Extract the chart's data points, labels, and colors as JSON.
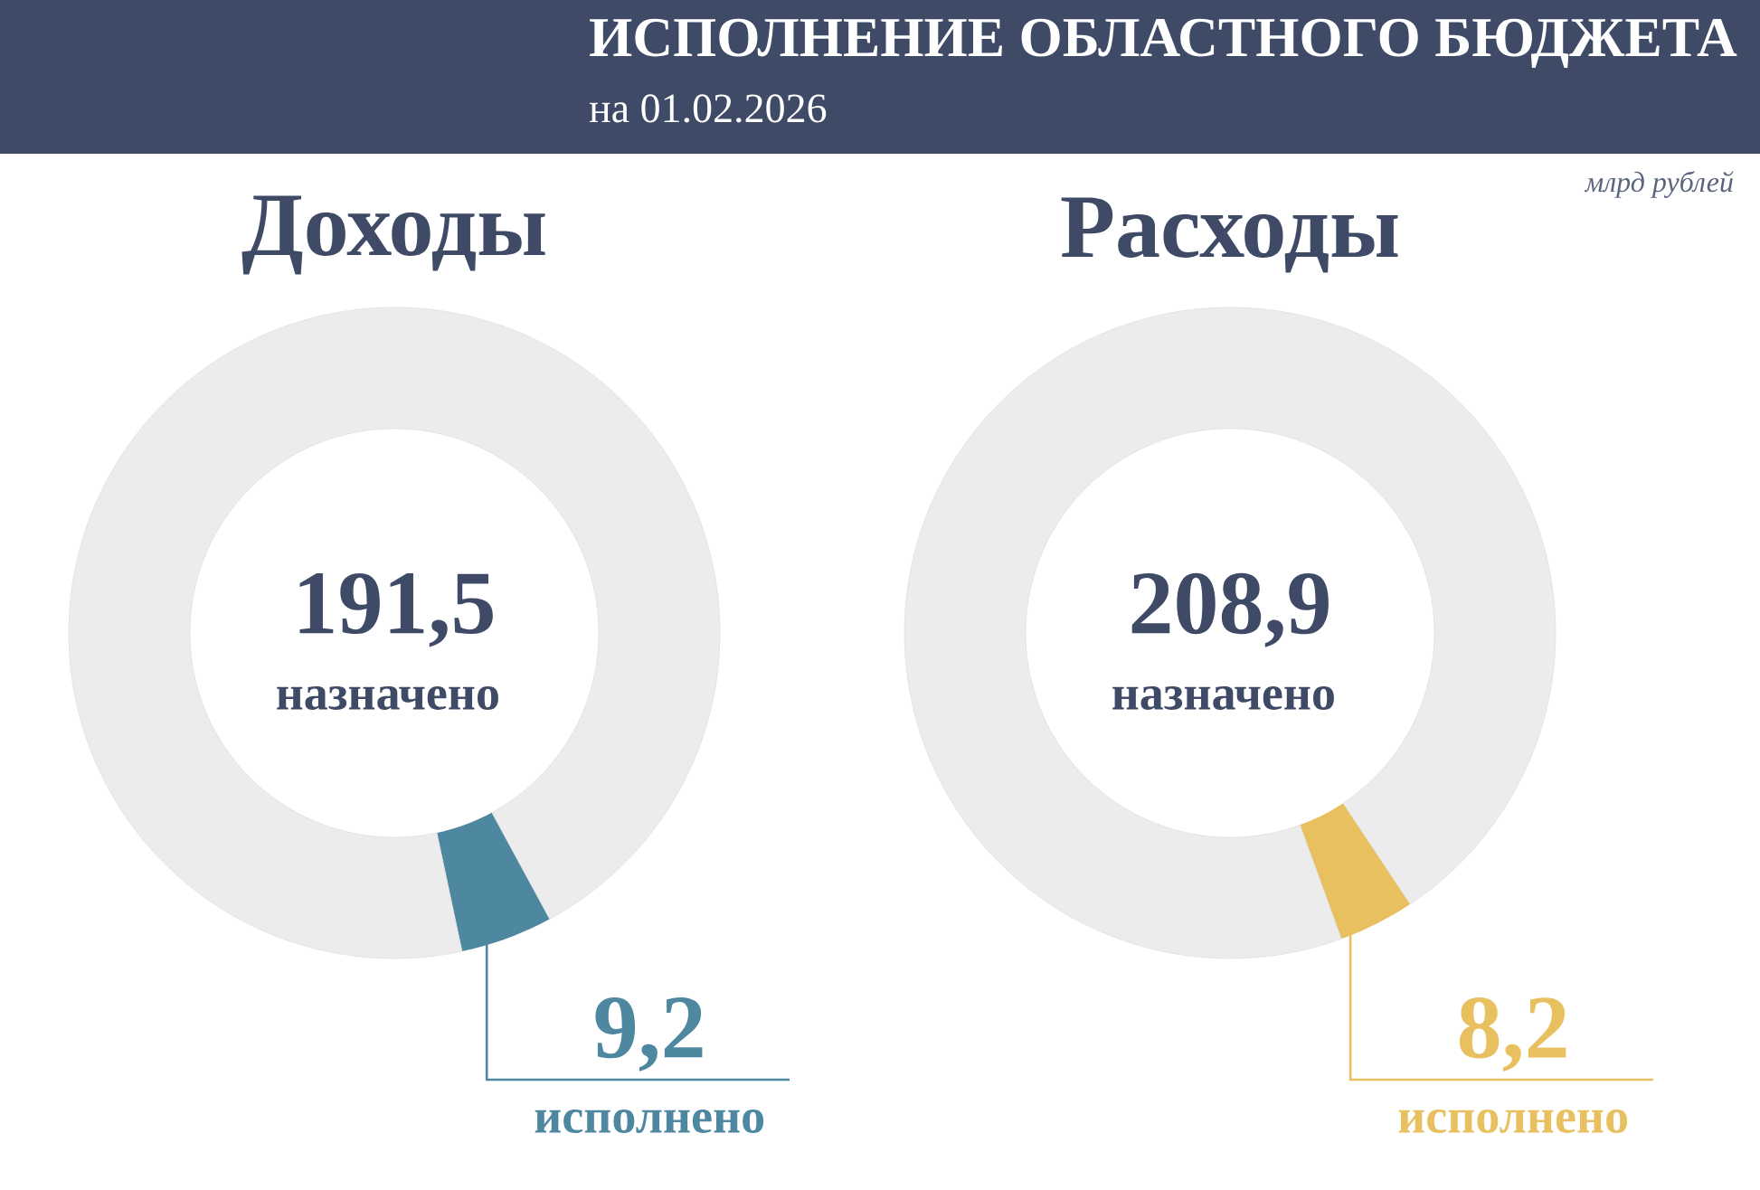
{
  "chart_data": [
    {
      "type": "other",
      "title": "ИСПОЛНЕНИЕ ОБЛАСТНОГО БЮДЖЕТА",
      "subtitle": "на 01.02.2026",
      "annotations": [
        "млрд рублей"
      ]
    },
    {
      "type": "donut",
      "title": "Доходы",
      "categories": [
        "исполнено",
        "назначено"
      ],
      "values": [
        9.2,
        191.5
      ],
      "value_labels": [
        "9,2",
        "191,5"
      ],
      "colors": [
        "#4e87a0",
        "#ececec"
      ]
    },
    {
      "type": "donut",
      "title": "Расходы",
      "categories": [
        "исполнено",
        "назначено"
      ],
      "values": [
        8.2,
        208.9
      ],
      "value_labels": [
        "8,2",
        "208,9"
      ],
      "colors": [
        "#e8c060",
        "#ececec"
      ]
    }
  ]
}
